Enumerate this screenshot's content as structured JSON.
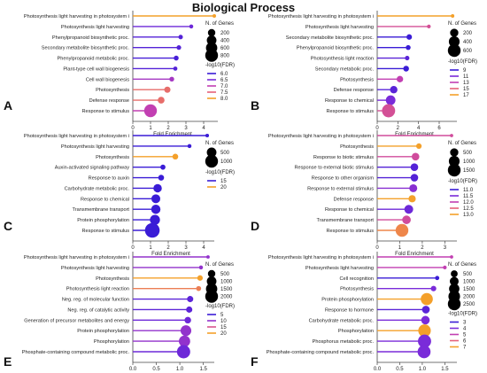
{
  "figure": {
    "title": "Biological Process"
  },
  "chart_data": [
    {
      "panel": "A",
      "type": "lollipop",
      "xlabel": "Fold Enrichment",
      "xlim": [
        0,
        4.5
      ],
      "xticks": [
        "0",
        "1",
        "2",
        "3",
        "4"
      ],
      "categories": [
        "Photosynthesis light harvesting in photosystem i",
        "Photosynthesis light harvesting",
        "Phenylpropanoid biosynthetic proc.",
        "Secondary metabolite biosynthetic proc.",
        "Phenylpropanoid metabolic proc.",
        "Plant-type cell wall biogenesis",
        "Cell wall biogenesis",
        "Photosynthesis",
        "Defense response",
        "Response to stimulus"
      ],
      "values": [
        4.6,
        3.3,
        2.7,
        2.6,
        2.45,
        2.4,
        2.2,
        1.95,
        1.6,
        1.0
      ],
      "n_genes": [
        15,
        25,
        40,
        45,
        55,
        30,
        50,
        120,
        150,
        800
      ],
      "log10_fdr": [
        8.0,
        6.4,
        6.2,
        6.2,
        6.1,
        6.2,
        6.8,
        7.6,
        7.6,
        7.0
      ],
      "size_legend": {
        "title": "N. of Genes",
        "labels": [
          "200",
          "400",
          "600",
          "800"
        ],
        "values": [
          200,
          400,
          600,
          800
        ]
      },
      "color_legend": {
        "title": "-log10(FDR)",
        "labels": [
          "6.0",
          "6.5",
          "7.0",
          "7.5",
          "8.0"
        ],
        "values": [
          6.0,
          6.5,
          7.0,
          7.5,
          8.0
        ]
      }
    },
    {
      "panel": "B",
      "type": "lollipop",
      "xlabel": "Fold Enrichment",
      "xlim": [
        0,
        7.2
      ],
      "xticks": [
        "0",
        "2",
        "4",
        "6"
      ],
      "categories": [
        "Photosynthesis light harvesting in photosystem i",
        "Photosynthesis light harvesting",
        "Secondary metabolite biosynthetic proc.",
        "Phenylpropanoid biosynthetic proc.",
        "Photosynthesis light reaction",
        "Secondary metabolic proc.",
        "Photosynthesis",
        "Defense response",
        "Response to chemical",
        "Response to stimulus"
      ],
      "values": [
        7.3,
        5.0,
        3.1,
        3.0,
        2.9,
        2.8,
        2.2,
        1.6,
        1.3,
        1.1
      ],
      "n_genes": [
        10,
        15,
        60,
        40,
        30,
        70,
        100,
        150,
        300,
        650
      ],
      "log10_fdr": [
        17,
        14,
        9,
        9,
        10,
        9,
        13,
        10,
        11,
        14
      ],
      "size_legend": {
        "title": "N. of Genes",
        "labels": [
          "200",
          "400",
          "600"
        ],
        "values": [
          200,
          400,
          600
        ]
      },
      "color_legend": {
        "title": "-log10(FDR)",
        "labels": [
          "9",
          "11",
          "13",
          "15",
          "17"
        ],
        "values": [
          9,
          11,
          13,
          15,
          17
        ]
      }
    },
    {
      "panel": "C",
      "type": "lollipop",
      "xlabel": "Fold Enrichment",
      "xlim": [
        0,
        4.3
      ],
      "xticks": [
        "0",
        "1",
        "2",
        "3",
        "4"
      ],
      "categories": [
        "Photosynthesis light harvesting in photosystem i",
        "Photosynthesis light harvesting",
        "Photosynthesis",
        "Auxin-activated signaling pathway",
        "Response to auxin",
        "Carbohydrate metabolic proc.",
        "Response to chemical",
        "Transmembrane transport",
        "Protein phosphorylation",
        "Response to stimulus"
      ],
      "values": [
        4.2,
        3.2,
        2.4,
        1.7,
        1.6,
        1.4,
        1.3,
        1.3,
        1.25,
        1.1
      ],
      "n_genes": [
        20,
        30,
        120,
        80,
        120,
        350,
        400,
        450,
        550,
        1400
      ],
      "log10_fdr": [
        14,
        14,
        20,
        10,
        10,
        12,
        13,
        13,
        12,
        13
      ],
      "size_legend": {
        "title": "N. of Genes",
        "labels": [
          "500",
          "1000"
        ],
        "values": [
          500,
          1000
        ]
      },
      "color_legend": {
        "title": "-log10(FDR)",
        "labels": [
          "15",
          "20"
        ],
        "values": [
          15,
          20
        ]
      }
    },
    {
      "panel": "D",
      "type": "lollipop",
      "xlabel": "Fold Enrichment",
      "xlim": [
        0,
        3.3
      ],
      "xticks": [
        "0",
        "1",
        "2",
        "3"
      ],
      "categories": [
        "Photosynthesis light harvesting in photosystem i",
        "Photosynthesis",
        "Response to biotic stimulus",
        "Response to external biotic stimulus",
        "Response to other organism",
        "Response to external stimulus",
        "Defense response",
        "Response to chemical",
        "Transmembrane transport",
        "Response to stimulus"
      ],
      "values": [
        3.3,
        1.85,
        1.7,
        1.65,
        1.65,
        1.6,
        1.55,
        1.4,
        1.3,
        1.1
      ],
      "n_genes": [
        20,
        150,
        400,
        400,
        400,
        450,
        350,
        600,
        550,
        1500
      ],
      "log10_fdr": [
        12.2,
        13.0,
        12.2,
        11.2,
        11.2,
        11.6,
        13.0,
        11.4,
        12.2,
        12.8
      ],
      "size_legend": {
        "title": "N. of Genes",
        "labels": [
          "500",
          "1000",
          "1500"
        ],
        "values": [
          500,
          1000,
          1500
        ]
      },
      "color_legend": {
        "title": "-log10(FDR)",
        "labels": [
          "11.0",
          "11.5",
          "12.0",
          "12.5",
          "13.0"
        ],
        "values": [
          11.0,
          11.5,
          12.0,
          12.5,
          13.0
        ]
      }
    },
    {
      "panel": "E",
      "type": "lollipop",
      "xlabel": "Fold Enrichment",
      "xlim": [
        0,
        1.62
      ],
      "xticks": [
        "0.0",
        "0.5",
        "1.0",
        "1.5"
      ],
      "categories": [
        "Photosynthesis light harvesting in photosystem i",
        "Photosynthesis light harvesting",
        "Photosynthesis",
        "Photosynthesis light reaction",
        "Neg. reg. of molecular function",
        "Neg. reg. of catalytic activity",
        "Generation of precursor metabolites and energy",
        "Protein phosphorylation",
        "Phosphorylation",
        "Phosphate-containing compound metabolic proc."
      ],
      "values": [
        1.6,
        1.45,
        1.43,
        1.4,
        1.22,
        1.2,
        1.17,
        1.13,
        1.1,
        1.08
      ],
      "n_genes": [
        30,
        60,
        200,
        150,
        300,
        300,
        350,
        1300,
        1500,
        2200
      ],
      "log10_fdr": [
        10,
        10,
        20,
        18,
        7,
        7,
        8,
        10,
        10,
        8
      ],
      "size_legend": {
        "title": "N. of Genes",
        "labels": [
          "500",
          "1000",
          "1500",
          "2000"
        ],
        "values": [
          500,
          1000,
          1500,
          2000
        ]
      },
      "color_legend": {
        "title": "-log10(FDR)",
        "labels": [
          "5",
          "10",
          "15",
          "20"
        ],
        "values": [
          5,
          10,
          15,
          20
        ]
      }
    },
    {
      "panel": "F",
      "type": "lollipop",
      "xlabel": "Fold Enrichment",
      "xlim": [
        0,
        1.65
      ],
      "xticks": [
        "0.0",
        "0.5",
        "1.0",
        "1.5"
      ],
      "categories": [
        "Photosynthesis light harvesting in photosystem i",
        "Photosynthesis light harvesting",
        "Cell recognition",
        "Photosynthesis",
        "Protein phosphorylation",
        "Response to hormone",
        "Carbohydrate metabolic proc.",
        "Phosphorylation",
        "Phosphorus metabolic proc.",
        "Phosphate-containing compound metabolic proc."
      ],
      "values": [
        1.65,
        1.5,
        1.33,
        1.25,
        1.1,
        1.08,
        1.07,
        1.05,
        1.05,
        1.04
      ],
      "n_genes": [
        30,
        60,
        100,
        250,
        2200,
        700,
        900,
        2400,
        2700,
        2600
      ],
      "log10_fdr": [
        5,
        5,
        3,
        4,
        7,
        3.5,
        4,
        7,
        4,
        4
      ],
      "size_legend": {
        "title": "N. of Genes",
        "labels": [
          "500",
          "1000",
          "1500",
          "2000",
          "2500"
        ],
        "values": [
          500,
          1000,
          1500,
          2000,
          2500
        ]
      },
      "color_legend": {
        "title": "-log10(FDR)",
        "labels": [
          "3",
          "4",
          "5",
          "6",
          "7"
        ],
        "values": [
          3,
          4,
          5,
          6,
          7
        ]
      }
    }
  ]
}
